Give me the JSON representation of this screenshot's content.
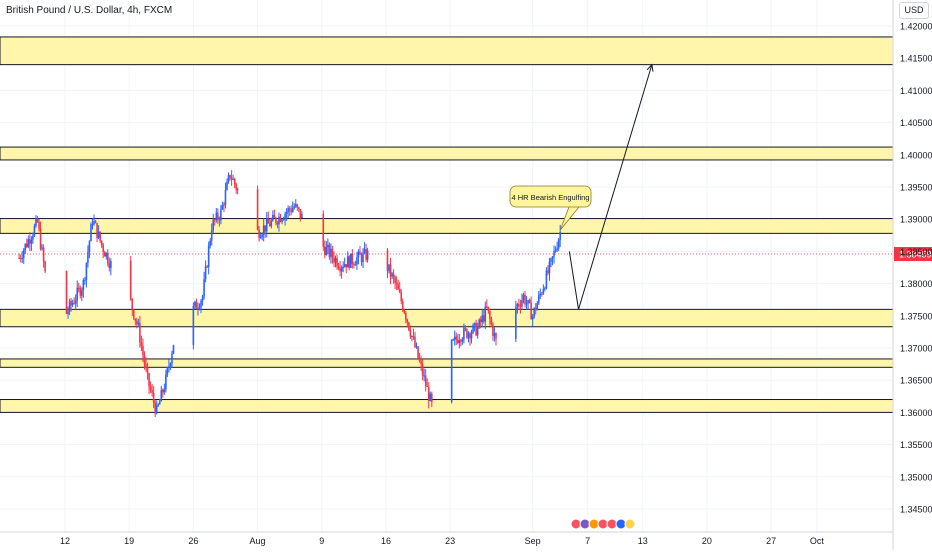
{
  "header": {
    "title": "British Pound / U.S. Dollar, 4h, FXCM"
  },
  "axis": {
    "currency": "USD"
  },
  "annotation": {
    "text": "4 HR Bearish Engulfing"
  },
  "current_price_label": "1.38459",
  "colors": {
    "zone_fill": "#fff59d",
    "zone_border": "#131722",
    "up_candle": "#2962ff",
    "down_candle": "#f23645",
    "price_line": "#f23645",
    "grid": "#f0f3fa",
    "callout_fill": "#fff59d"
  },
  "chart_data": {
    "type": "candlestick",
    "title": "British Pound / U.S. Dollar, 4h, FXCM",
    "ylabel": "USD",
    "ylim": [
      1.341,
      1.4225
    ],
    "grid": true,
    "y_ticks": [
      "1.42000",
      "1.41500",
      "1.41000",
      "1.40500",
      "1.40000",
      "1.39500",
      "1.39000",
      "1.38500",
      "1.38000",
      "1.37500",
      "1.37000",
      "1.36500",
      "1.36000",
      "1.35500",
      "1.35000",
      "1.34500"
    ],
    "x_ticks": [
      "12",
      "19",
      "26",
      "Aug",
      "9",
      "16",
      "23",
      "Sep",
      "7",
      "13",
      "20",
      "27",
      "Oct"
    ],
    "last_price": 1.38459,
    "zones": [
      {
        "from": 1.414,
        "to": 1.4183
      },
      {
        "from": 1.3992,
        "to": 1.4012
      },
      {
        "from": 1.3878,
        "to": 1.3901
      },
      {
        "from": 1.3733,
        "to": 1.376
      },
      {
        "from": 1.367,
        "to": 1.3683
      },
      {
        "from": 1.36,
        "to": 1.362
      }
    ],
    "price_path": [
      [
        "Jul 7",
        1.384
      ],
      [
        "Jul 9",
        1.3895
      ],
      [
        "Jul 10",
        1.38
      ],
      [
        "Jul 12",
        1.375
      ],
      [
        "Jul 14",
        1.38
      ],
      [
        "Jul 15",
        1.39
      ],
      [
        "Jul 16",
        1.386
      ],
      [
        "Jul 17",
        1.383
      ],
      [
        "Jul 19",
        1.378
      ],
      [
        "Jul 20",
        1.373
      ],
      [
        "Jul 21",
        1.365
      ],
      [
        "Jul 22",
        1.36
      ],
      [
        "Jul 23",
        1.365
      ],
      [
        "Jul 24",
        1.372
      ],
      [
        "Jul 26",
        1.376
      ],
      [
        "Jul 27",
        1.378
      ],
      [
        "Jul 28",
        1.389
      ],
      [
        "Jul 29",
        1.391
      ],
      [
        "Jul 30",
        1.397
      ],
      [
        "Aug 2",
        1.388
      ],
      [
        "Aug 4",
        1.39
      ],
      [
        "Aug 6",
        1.392
      ],
      [
        "Aug 8",
        1.388
      ],
      [
        "Aug 9",
        1.386
      ],
      [
        "Aug 11",
        1.383
      ],
      [
        "Aug 13",
        1.384
      ],
      [
        "Aug 15",
        1.385
      ],
      [
        "Aug 16",
        1.383
      ],
      [
        "Aug 17",
        1.38
      ],
      [
        "Aug 18",
        1.376
      ],
      [
        "Aug 19",
        1.371
      ],
      [
        "Aug 20",
        1.366
      ],
      [
        "Aug 21",
        1.361
      ],
      [
        "Aug 22",
        1.365
      ],
      [
        "Aug 23",
        1.37
      ],
      [
        "Aug 24",
        1.372
      ],
      [
        "Aug 26",
        1.373
      ],
      [
        "Aug 27",
        1.376
      ],
      [
        "Aug 28",
        1.371
      ],
      [
        "Aug 30",
        1.376
      ],
      [
        "Aug 31",
        1.378
      ],
      [
        "Sep 1",
        1.375
      ],
      [
        "Sep 2",
        1.379
      ],
      [
        "Sep 3",
        1.383
      ],
      [
        "Sep 4",
        1.388
      ],
      [
        "Sep 5",
        1.385
      ]
    ],
    "projection": [
      [
        "Sep 5",
        1.385
      ],
      [
        "Sep 6",
        1.376
      ],
      [
        "Sep 14",
        1.414
      ]
    ]
  }
}
